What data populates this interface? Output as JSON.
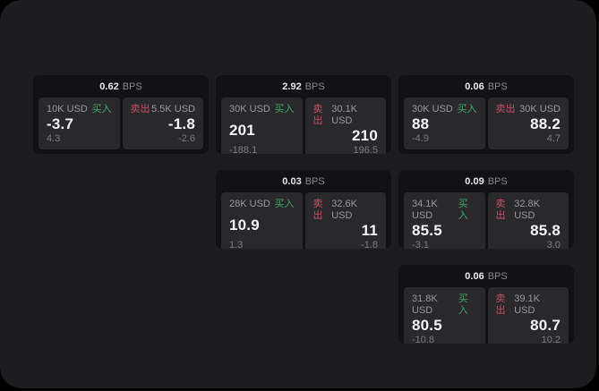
{
  "colors": {
    "outer_background": "#000000",
    "panel_background": "#1d1d1f",
    "card_background": "#121214",
    "tile_background": "#29292b",
    "buy_green": "#46a46e",
    "sell_red": "#c65068",
    "price_white": "#f4f4f6",
    "muted_gray": "#98989d"
  },
  "labels": {
    "bps_unit": "BPS",
    "buy": "买入",
    "sell": "卖出"
  },
  "cards": [
    {
      "row": 1,
      "col": 1,
      "spread": "0.62",
      "buy": {
        "amount": "10K USD",
        "price": "-3.7",
        "delta": "4.3"
      },
      "sell": {
        "amount": "5.5K USD",
        "price": "-1.8",
        "delta": "-2.6"
      }
    },
    {
      "row": 1,
      "col": 2,
      "spread": "2.92",
      "buy": {
        "amount": "30K USD",
        "price": "201",
        "delta": "-188.1"
      },
      "sell": {
        "amount": "30.1K USD",
        "price": "210",
        "delta": "196.5"
      }
    },
    {
      "row": 1,
      "col": 3,
      "spread": "0.06",
      "buy": {
        "amount": "30K USD",
        "price": "88",
        "delta": "-4.9"
      },
      "sell": {
        "amount": "30K USD",
        "price": "88.2",
        "delta": "4.7"
      }
    },
    {
      "row": 2,
      "col": 2,
      "spread": "0.03",
      "buy": {
        "amount": "28K USD",
        "price": "10.9",
        "delta": "1.3"
      },
      "sell": {
        "amount": "32.6K USD",
        "price": "11",
        "delta": "-1.8"
      }
    },
    {
      "row": 2,
      "col": 3,
      "spread": "0.09",
      "buy": {
        "amount": "34.1K USD",
        "price": "85.5",
        "delta": "-3.1"
      },
      "sell": {
        "amount": "32.8K USD",
        "price": "85.8",
        "delta": "3.0"
      }
    },
    {
      "row": 3,
      "col": 3,
      "spread": "0.06",
      "buy": {
        "amount": "31.8K USD",
        "price": "80.5",
        "delta": "-10.8"
      },
      "sell": {
        "amount": "39.1K USD",
        "price": "80.7",
        "delta": "10.2"
      }
    }
  ]
}
